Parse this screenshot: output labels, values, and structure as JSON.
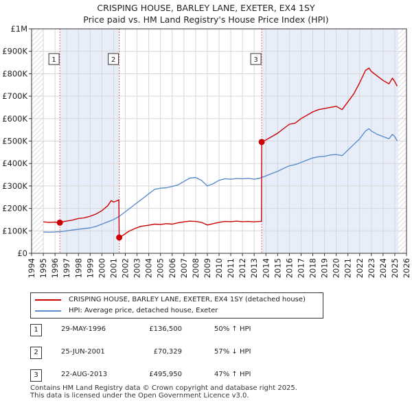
{
  "chart_data": {
    "type": "line",
    "title": "CRISPING HOUSE, BARLEY LANE, EXETER, EX4 1SY",
    "subtitle": "Price paid vs. HM Land Registry's House Price Index (HPI)",
    "xlabel": "",
    "ylabel": "",
    "xlim": [
      1994.0,
      2026.0
    ],
    "ylim": [
      0,
      1000000
    ],
    "x_ticks": [
      "1994",
      "1995",
      "1996",
      "1997",
      "1998",
      "1999",
      "2000",
      "2001",
      "2002",
      "2003",
      "2004",
      "2005",
      "2006",
      "2007",
      "2008",
      "2009",
      "2010",
      "2011",
      "2012",
      "2013",
      "2014",
      "2015",
      "2016",
      "2017",
      "2018",
      "2019",
      "2020",
      "2021",
      "2022",
      "2023",
      "2024",
      "2025",
      "2026"
    ],
    "y_ticks": [
      {
        "value": 0,
        "label": "£0"
      },
      {
        "value": 100000,
        "label": "£100K"
      },
      {
        "value": 200000,
        "label": "£200K"
      },
      {
        "value": 300000,
        "label": "£300K"
      },
      {
        "value": 400000,
        "label": "£400K"
      },
      {
        "value": 500000,
        "label": "£500K"
      },
      {
        "value": 600000,
        "label": "£600K"
      },
      {
        "value": 700000,
        "label": "£700K"
      },
      {
        "value": 800000,
        "label": "£800K"
      },
      {
        "value": 900000,
        "label": "£900K"
      },
      {
        "value": 1000000,
        "label": "£1M"
      }
    ],
    "grid": true,
    "series": [
      {
        "name": "CRISPING HOUSE, BARLEY LANE, EXETER, EX4 1SY (detached house)",
        "color": "#cc0000",
        "points": [
          [
            1995.0,
            140000
          ],
          [
            1995.5,
            138000
          ],
          [
            1996.0,
            139000
          ],
          [
            1996.41,
            136500
          ],
          [
            1996.8,
            142000
          ],
          [
            1997.5,
            148000
          ],
          [
            1998.0,
            155000
          ],
          [
            1998.5,
            158000
          ],
          [
            1999.0,
            165000
          ],
          [
            1999.5,
            175000
          ],
          [
            2000.0,
            190000
          ],
          [
            2000.5,
            212000
          ],
          [
            2000.8,
            235000
          ],
          [
            2001.0,
            228000
          ],
          [
            2001.2,
            232000
          ],
          [
            2001.45,
            238000
          ],
          [
            2001.48,
            70329
          ],
          [
            2001.8,
            80000
          ],
          [
            2002.3,
            98000
          ],
          [
            2002.8,
            110000
          ],
          [
            2003.3,
            120000
          ],
          [
            2004.0,
            125000
          ],
          [
            2004.5,
            130000
          ],
          [
            2005.0,
            128000
          ],
          [
            2005.5,
            132000
          ],
          [
            2006.0,
            130000
          ],
          [
            2006.5,
            136000
          ],
          [
            2007.0,
            140000
          ],
          [
            2007.5,
            143000
          ],
          [
            2008.0,
            142000
          ],
          [
            2008.5,
            138000
          ],
          [
            2009.0,
            126000
          ],
          [
            2009.5,
            132000
          ],
          [
            2010.0,
            138000
          ],
          [
            2010.5,
            142000
          ],
          [
            2011.0,
            141000
          ],
          [
            2011.5,
            143000
          ],
          [
            2012.0,
            141000
          ],
          [
            2012.5,
            142000
          ],
          [
            2013.0,
            140000
          ],
          [
            2013.5,
            142000
          ],
          [
            2013.62,
            143000
          ],
          [
            2013.64,
            495950
          ],
          [
            2014.0,
            505000
          ],
          [
            2014.5,
            520000
          ],
          [
            2015.0,
            535000
          ],
          [
            2015.5,
            555000
          ],
          [
            2016.0,
            575000
          ],
          [
            2016.5,
            580000
          ],
          [
            2017.0,
            600000
          ],
          [
            2017.5,
            615000
          ],
          [
            2018.0,
            630000
          ],
          [
            2018.5,
            640000
          ],
          [
            2019.0,
            645000
          ],
          [
            2019.5,
            650000
          ],
          [
            2020.0,
            655000
          ],
          [
            2020.5,
            640000
          ],
          [
            2021.0,
            675000
          ],
          [
            2021.5,
            710000
          ],
          [
            2022.0,
            760000
          ],
          [
            2022.5,
            815000
          ],
          [
            2022.8,
            825000
          ],
          [
            2023.0,
            810000
          ],
          [
            2023.5,
            790000
          ],
          [
            2024.0,
            770000
          ],
          [
            2024.5,
            755000
          ],
          [
            2024.8,
            780000
          ],
          [
            2025.0,
            765000
          ],
          [
            2025.2,
            745000
          ]
        ]
      },
      {
        "name": "HPI: Average price, detached house, Exeter",
        "color": "#5b8ccc",
        "points": [
          [
            1995.0,
            95000
          ],
          [
            1995.5,
            94000
          ],
          [
            1996.0,
            95000
          ],
          [
            1996.5,
            97000
          ],
          [
            1997.0,
            100000
          ],
          [
            1997.5,
            104000
          ],
          [
            1998.0,
            107000
          ],
          [
            1998.5,
            110000
          ],
          [
            1999.0,
            113000
          ],
          [
            1999.5,
            120000
          ],
          [
            2000.0,
            130000
          ],
          [
            2000.5,
            140000
          ],
          [
            2001.0,
            150000
          ],
          [
            2001.5,
            165000
          ],
          [
            2002.0,
            185000
          ],
          [
            2002.5,
            205000
          ],
          [
            2003.0,
            225000
          ],
          [
            2003.5,
            245000
          ],
          [
            2004.0,
            265000
          ],
          [
            2004.5,
            285000
          ],
          [
            2005.0,
            290000
          ],
          [
            2005.5,
            292000
          ],
          [
            2006.0,
            298000
          ],
          [
            2006.5,
            305000
          ],
          [
            2007.0,
            320000
          ],
          [
            2007.5,
            335000
          ],
          [
            2008.0,
            338000
          ],
          [
            2008.5,
            325000
          ],
          [
            2009.0,
            300000
          ],
          [
            2009.5,
            310000
          ],
          [
            2010.0,
            325000
          ],
          [
            2010.5,
            332000
          ],
          [
            2011.0,
            330000
          ],
          [
            2011.5,
            333000
          ],
          [
            2012.0,
            332000
          ],
          [
            2012.5,
            334000
          ],
          [
            2013.0,
            330000
          ],
          [
            2013.5,
            335000
          ],
          [
            2014.0,
            345000
          ],
          [
            2014.5,
            355000
          ],
          [
            2015.0,
            365000
          ],
          [
            2015.5,
            378000
          ],
          [
            2016.0,
            390000
          ],
          [
            2016.5,
            395000
          ],
          [
            2017.0,
            405000
          ],
          [
            2017.5,
            415000
          ],
          [
            2018.0,
            425000
          ],
          [
            2018.5,
            430000
          ],
          [
            2019.0,
            432000
          ],
          [
            2019.5,
            438000
          ],
          [
            2020.0,
            440000
          ],
          [
            2020.5,
            435000
          ],
          [
            2021.0,
            460000
          ],
          [
            2021.5,
            485000
          ],
          [
            2022.0,
            510000
          ],
          [
            2022.5,
            545000
          ],
          [
            2022.8,
            555000
          ],
          [
            2023.0,
            545000
          ],
          [
            2023.5,
            530000
          ],
          [
            2024.0,
            520000
          ],
          [
            2024.5,
            510000
          ],
          [
            2024.8,
            530000
          ],
          [
            2025.0,
            520000
          ],
          [
            2025.2,
            500000
          ]
        ]
      }
    ],
    "sales": [
      {
        "label": "1",
        "x": 1996.41,
        "value": 136500
      },
      {
        "label": "2",
        "x": 2001.48,
        "value": 70329
      },
      {
        "label": "3",
        "x": 2013.64,
        "value": 495950
      }
    ],
    "shaded_periods": [
      [
        1996.41,
        2001.48
      ],
      [
        2013.64,
        2025.3
      ]
    ],
    "hatched_periods": [
      [
        1994.0,
        1995.0
      ],
      [
        2025.3,
        2026.0
      ]
    ]
  },
  "legend": {
    "items": [
      {
        "label": "CRISPING HOUSE, BARLEY LANE, EXETER, EX4 1SY (detached house)",
        "color": "#cc0000"
      },
      {
        "label": "HPI: Average price, detached house, Exeter",
        "color": "#5b8ccc"
      }
    ]
  },
  "transactions": [
    {
      "num": "1",
      "date": "29-MAY-1996",
      "price": "£136,500",
      "hpi": "50% ↑ HPI"
    },
    {
      "num": "2",
      "date": "25-JUN-2001",
      "price": "£70,329",
      "hpi": "57% ↓ HPI"
    },
    {
      "num": "3",
      "date": "22-AUG-2013",
      "price": "£495,950",
      "hpi": "47% ↑ HPI"
    }
  ],
  "footer": {
    "line1": "Contains HM Land Registry data © Crown copyright and database right 2025.",
    "line2": "This data is licensed under the Open Government Licence v3.0."
  }
}
